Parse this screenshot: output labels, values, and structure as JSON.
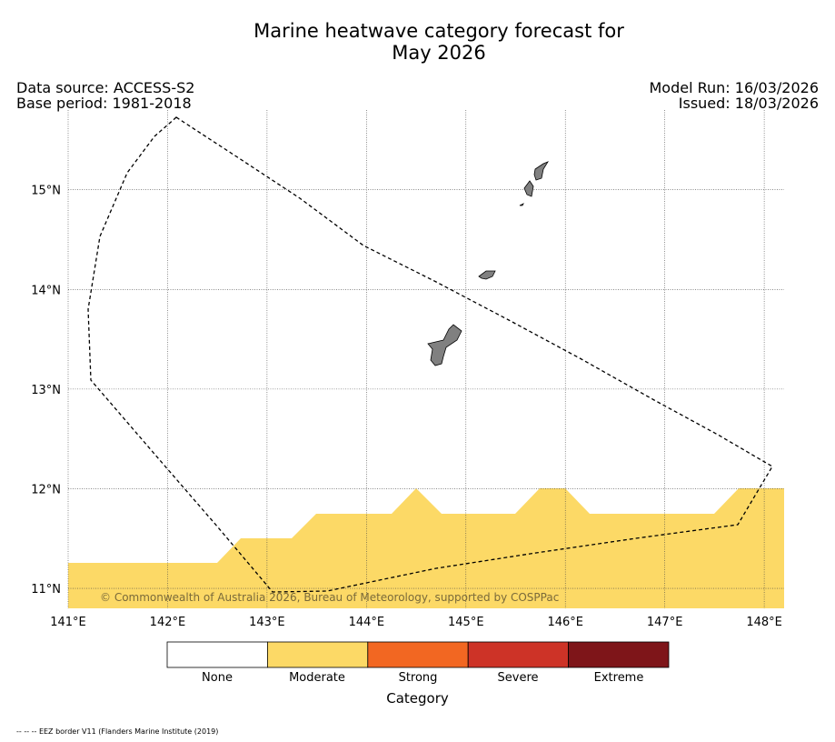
{
  "title_line1": "Marine heatwave category forecast for",
  "title_line2": "May 2026",
  "data_source": "Data source: ACCESS-S2",
  "base_period": "Base period: 1981-2018",
  "model_run": "Model Run: 16/03/2026",
  "issued": "Issued: 18/03/2026",
  "copyright": "© Commonwealth of Australia 2026, Bureau of Meteorology, supported by COSPPac",
  "map": {
    "lon_range": [
      141.0,
      148.2
    ],
    "lat_range": [
      10.8,
      15.8
    ],
    "lon_ticks": [
      "141°E",
      "142°E",
      "143°E",
      "144°E",
      "145°E",
      "146°E",
      "147°E",
      "148°E"
    ],
    "lat_ticks": [
      "15°N",
      "14°N",
      "13°N",
      "12°N",
      "11°N"
    ],
    "grid": true,
    "land_color": "#808080",
    "moderate_region_color": "#fcd966"
  },
  "colorbar": {
    "title": "Category",
    "categories": [
      {
        "label": "None",
        "color": "#ffffff"
      },
      {
        "label": "Moderate",
        "color": "#fcd966"
      },
      {
        "label": "Strong",
        "color": "#f26722"
      },
      {
        "label": "Severe",
        "color": "#cd3327"
      },
      {
        "label": "Extreme",
        "color": "#7e1519"
      }
    ]
  },
  "footnote": "-- -- -- EEZ border V11 (Flanders Marine Institute (2019)"
}
